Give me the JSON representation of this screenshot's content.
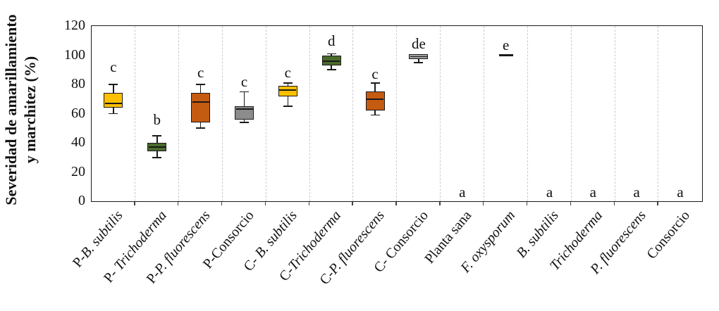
{
  "chart_data": {
    "type": "boxplot",
    "title": "",
    "ylabel": "Severidad de amarillamiento y marchitez (%)",
    "ylabel_line1": "Severidad de amarillamiento",
    "ylabel_line2": "y marchitez (%)",
    "xlabel": "",
    "ylim": [
      0,
      120
    ],
    "yticks": [
      0,
      20,
      40,
      60,
      80,
      100,
      120
    ],
    "grid": "vertical-dashed-separators-between-categories",
    "legend": null,
    "colors": {
      "axis": "#1a1a1a",
      "grid": "#cccccc",
      "text": "#111111",
      "gold": "#FFC000",
      "green": "#4A6B2B",
      "orange": "#C55A11",
      "gray_dark": "#8C8C8C",
      "gray_light": "#A0A0A0"
    },
    "categories": [
      {
        "label": "P-B. subtilis",
        "label_prefix": "P-",
        "label_name": "B. subtilis",
        "name_italic": true,
        "letter": "c",
        "letter_v": 92,
        "color": "#FFC000",
        "box": {
          "whislo": 60,
          "q1": 64,
          "med": 67,
          "q3": 74,
          "whishi": 80
        }
      },
      {
        "label": "P- Trichoderma",
        "label_prefix": "P- ",
        "label_name": "Trichoderma",
        "name_italic": true,
        "letter": "b",
        "letter_v": 56,
        "color": "#4A6B2B",
        "box": {
          "whislo": 30,
          "q1": 34,
          "med": 37,
          "q3": 40,
          "whishi": 45
        }
      },
      {
        "label": "P-P. fluorescens",
        "label_prefix": "P-",
        "label_name": "P. fluorescens",
        "name_italic": true,
        "letter": "c",
        "letter_v": 88,
        "color": "#C55A11",
        "box": {
          "whislo": 50,
          "q1": 54,
          "med": 68,
          "q3": 74,
          "whishi": 80
        }
      },
      {
        "label": "P-Consorcio",
        "label_prefix": "",
        "label_name": "P-Consorcio",
        "name_italic": false,
        "letter": "c",
        "letter_v": 82,
        "color": "#8C8C8C",
        "box": {
          "whislo": 54,
          "q1": 56,
          "med": 63,
          "q3": 65,
          "whishi": 75
        }
      },
      {
        "label": "C- B. subtilis",
        "label_prefix": "C- ",
        "label_name": "B. subtilis",
        "name_italic": true,
        "letter": "c",
        "letter_v": 88,
        "color": "#FFC000",
        "box": {
          "whislo": 65,
          "q1": 72,
          "med": 76,
          "q3": 79,
          "whishi": 81
        }
      },
      {
        "label": "C-Trichoderma",
        "label_prefix": "C-",
        "label_name": "Trichoderma",
        "name_italic": true,
        "letter": "d",
        "letter_v": 110,
        "color": "#4A6B2B",
        "box": {
          "whislo": 90,
          "q1": 93,
          "med": 96,
          "q3": 100,
          "whishi": 101
        }
      },
      {
        "label": "C-P. fluorescens",
        "label_prefix": "C-",
        "label_name": "P. fluorescens",
        "name_italic": true,
        "letter": "c",
        "letter_v": 87,
        "color": "#C55A11",
        "box": {
          "whislo": 59,
          "q1": 62,
          "med": 70,
          "q3": 75,
          "whishi": 81
        }
      },
      {
        "label": "C- Consorcio",
        "label_prefix": "",
        "label_name": "C- Consorcio",
        "name_italic": false,
        "letter": "de",
        "letter_v": 108,
        "color": "#A0A0A0",
        "box": {
          "whislo": 95,
          "q1": 97.5,
          "med": 99,
          "q3": 100.5,
          "whishi": 100.5
        }
      },
      {
        "label": "Planta sana",
        "label_prefix": "",
        "label_name": "Planta sana",
        "name_italic": false,
        "letter": "a",
        "letter_v": 6.5,
        "color": null,
        "box": null
      },
      {
        "label": "F. oxysporum",
        "label_prefix": "",
        "label_name": "F. oxysporum",
        "name_italic": true,
        "letter": "e",
        "letter_v": 107,
        "color": null,
        "box": null,
        "flat_value": 100
      },
      {
        "label": "B. subtilis",
        "label_prefix": "",
        "label_name": "B. subtilis",
        "name_italic": true,
        "letter": "a",
        "letter_v": 6.5,
        "color": null,
        "box": null
      },
      {
        "label": "Trichoderma",
        "label_prefix": "",
        "label_name": "Trichoderma",
        "name_italic": true,
        "letter": "a",
        "letter_v": 6.5,
        "color": null,
        "box": null
      },
      {
        "label": "P. fluorescens",
        "label_prefix": "",
        "label_name": "P. fluorescens",
        "name_italic": true,
        "letter": "a",
        "letter_v": 6.5,
        "color": null,
        "box": null
      },
      {
        "label": "Consorcio",
        "label_prefix": "",
        "label_name": "Consorcio",
        "name_italic": false,
        "letter": "a",
        "letter_v": 6.5,
        "color": null,
        "box": null
      }
    ]
  }
}
